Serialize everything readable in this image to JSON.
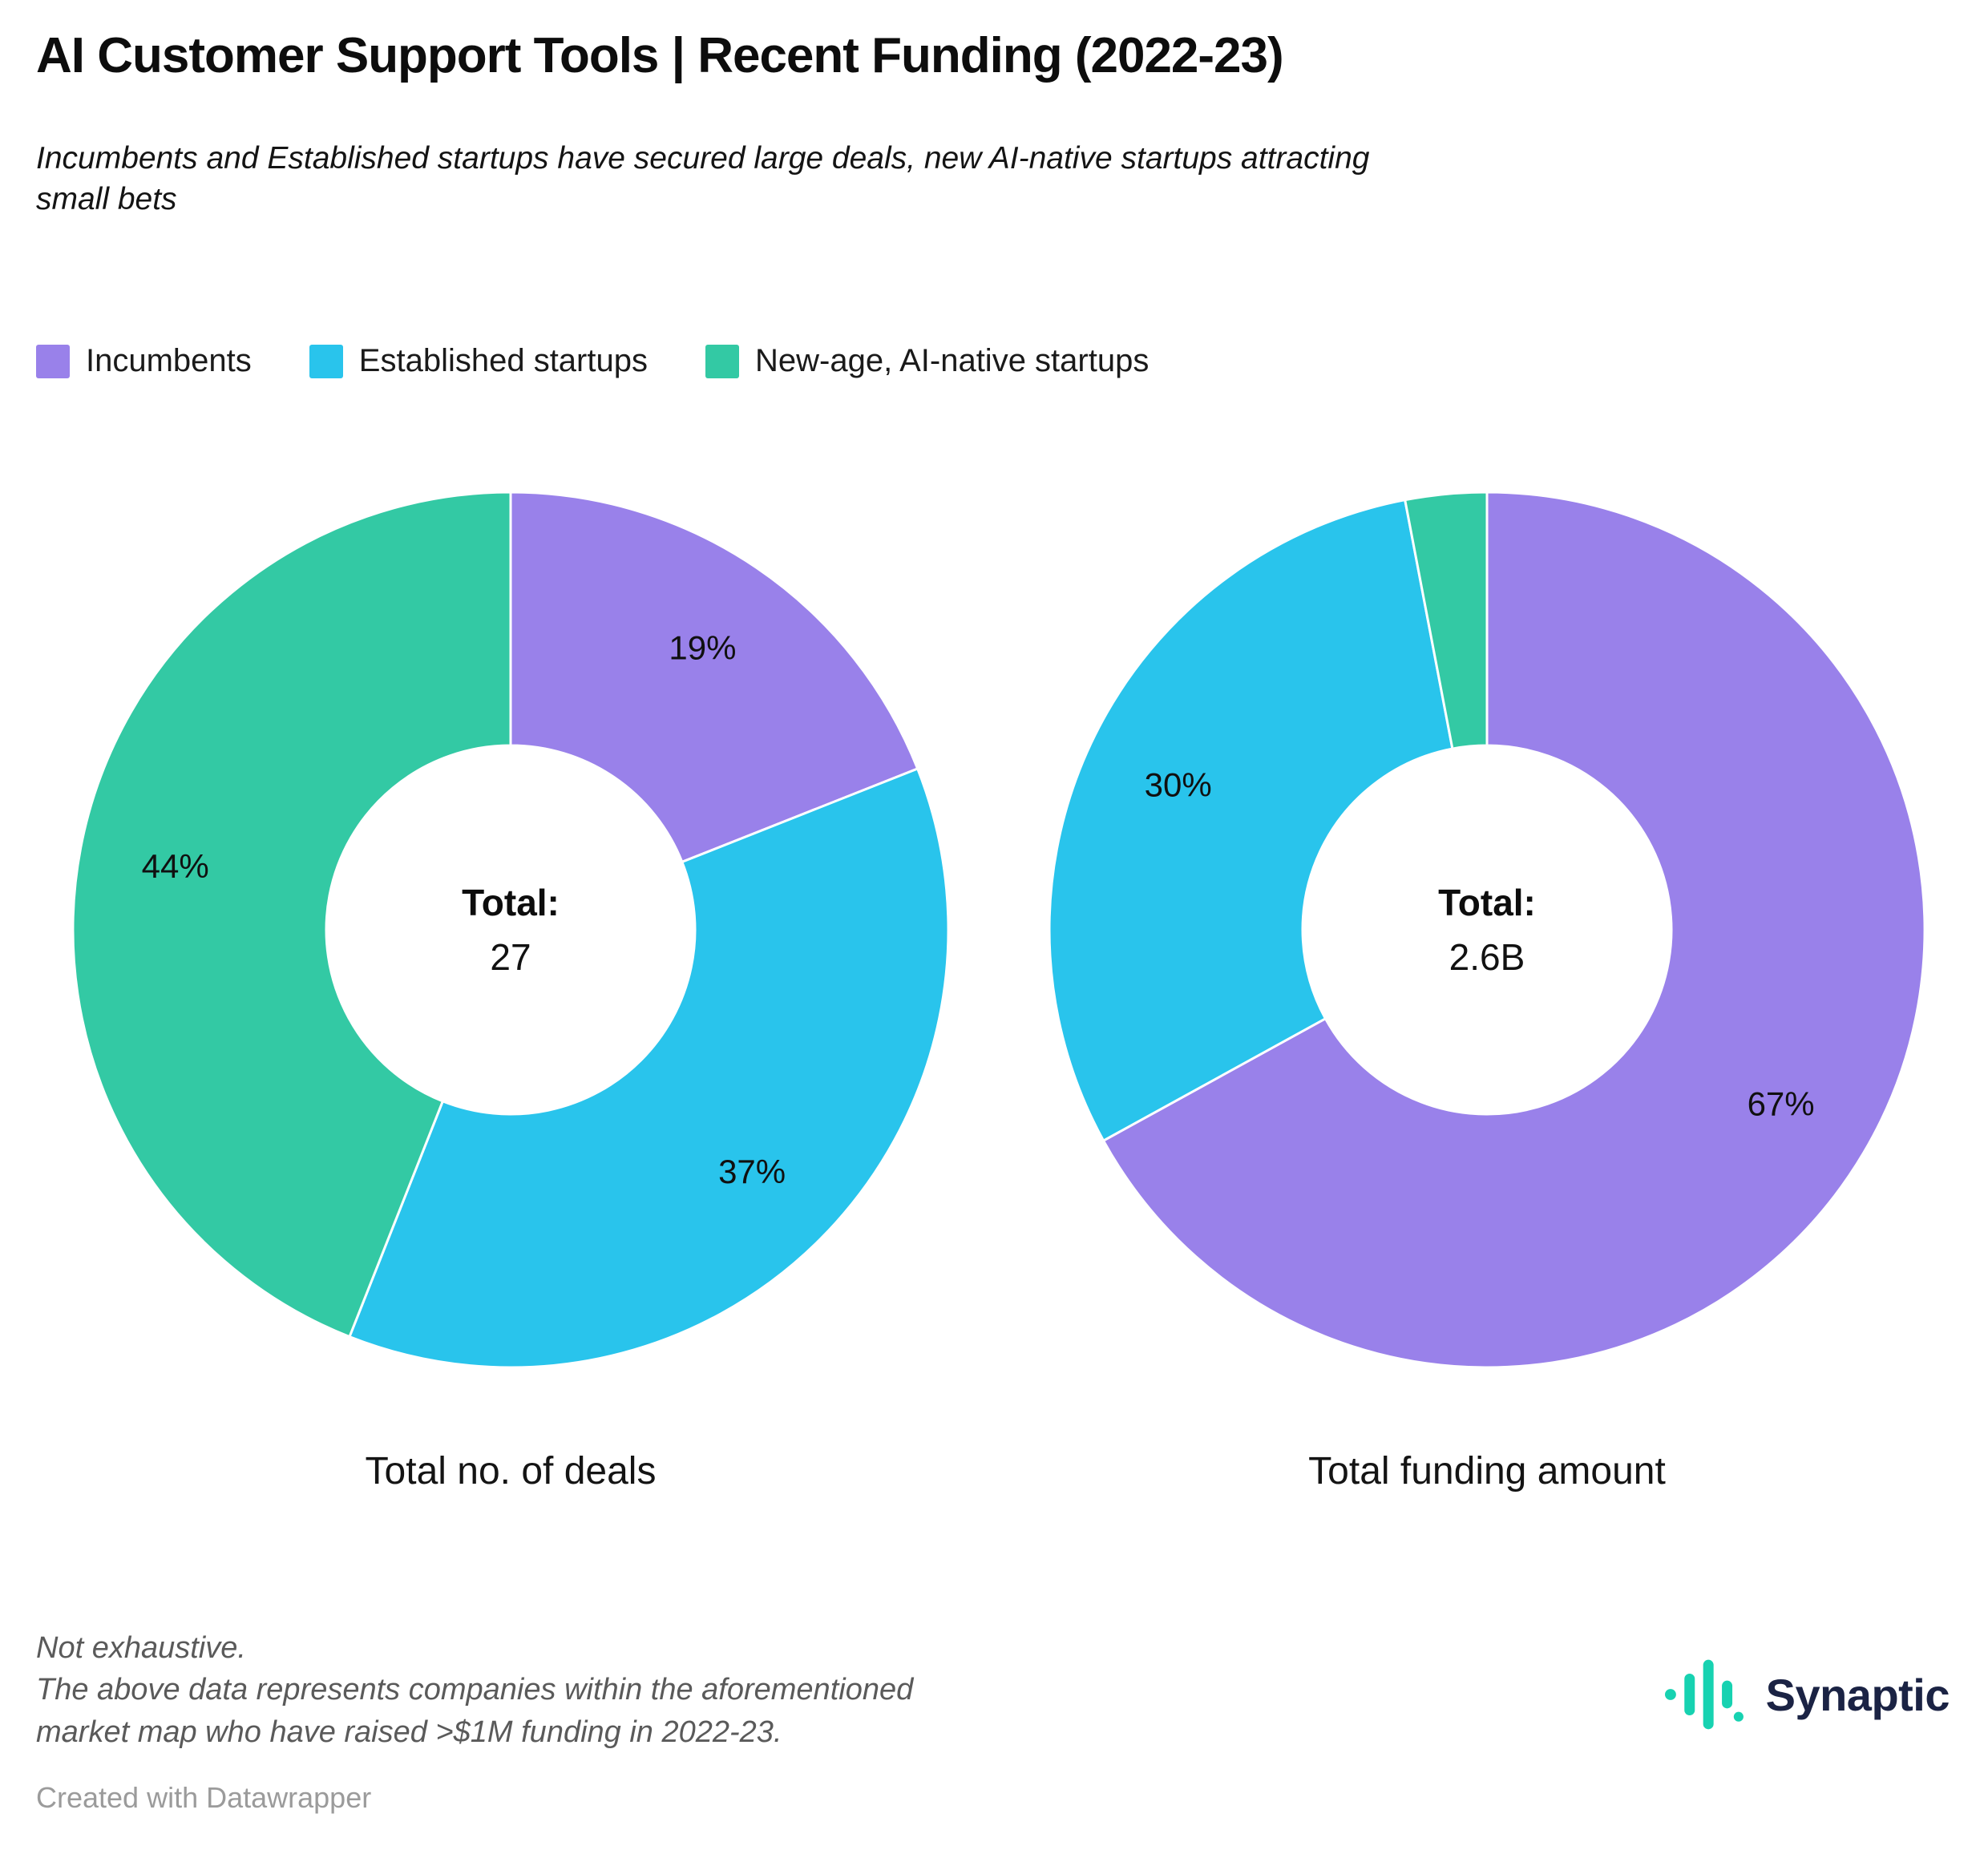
{
  "header": {
    "title": "AI Customer Support Tools | Recent Funding (2022-23)",
    "subtitle": "Incumbents and Established startups have secured large deals, new AI-native startups attracting small bets"
  },
  "legend": {
    "position": "top",
    "items": [
      {
        "label": "Incumbents",
        "color": "#9981ea"
      },
      {
        "label": "Established startups",
        "color": "#29c4ec"
      },
      {
        "label": "New-age, AI-native startups",
        "color": "#33c9a4"
      }
    ]
  },
  "chart_data": [
    {
      "type": "pie",
      "variant": "donut",
      "title": "Total no. of deals",
      "center_label": "Total:",
      "center_value": "27",
      "categories": [
        "Incumbents",
        "Established startups",
        "New-age, AI-native startups"
      ],
      "values": [
        19,
        37,
        44
      ],
      "labels": [
        "19%",
        "37%",
        "44%"
      ],
      "colors": [
        "#9981ea",
        "#29c4ec",
        "#33c9a4"
      ],
      "start_angle_deg": 0,
      "direction": "clockwise"
    },
    {
      "type": "pie",
      "variant": "donut",
      "title": "Total funding amount",
      "center_label": "Total:",
      "center_value": "2.6B",
      "categories": [
        "Incumbents",
        "Established startups",
        "New-age, AI-native startups"
      ],
      "values": [
        67,
        30,
        3
      ],
      "labels": [
        "67%",
        "30%",
        ""
      ],
      "colors": [
        "#9981ea",
        "#29c4ec",
        "#33c9a4"
      ],
      "start_angle_deg": 0,
      "direction": "clockwise"
    }
  ],
  "footer": {
    "notes": [
      "Not exhaustive.",
      "The above data represents companies within the aforementioned market map who have raised >$1M funding in 2022-23."
    ],
    "attribution": "Created with Datawrapper",
    "brand": "Synaptic",
    "brand_color": "#17d2b1",
    "brand_text_color": "#1b2344"
  }
}
